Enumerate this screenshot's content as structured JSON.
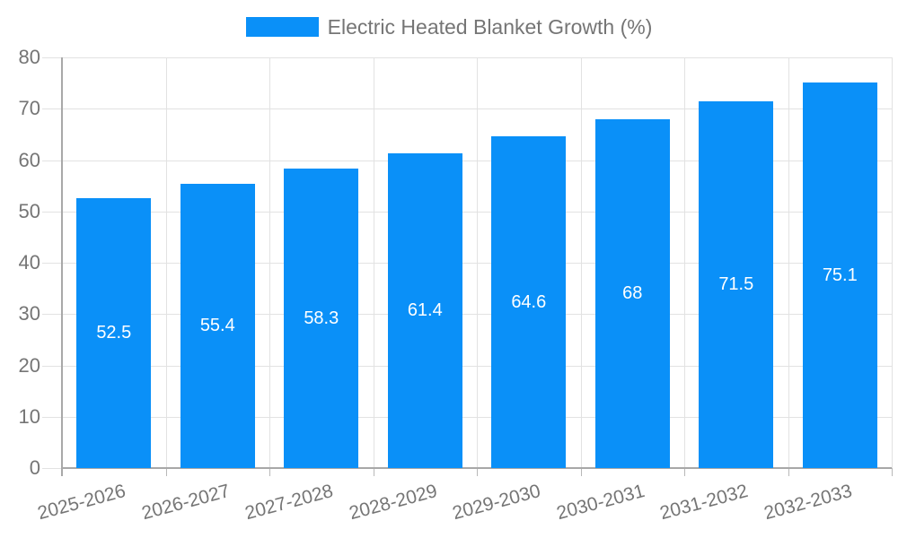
{
  "chart_data": {
    "type": "bar",
    "title": "Electric Heated Blanket Growth (%)",
    "categories": [
      "2025-2026",
      "2026-2027",
      "2027-2028",
      "2028-2029",
      "2029-2030",
      "2030-2031",
      "2031-2032",
      "2032-2033"
    ],
    "values": [
      52.5,
      55.4,
      58.3,
      61.4,
      64.6,
      68,
      71.5,
      75.1
    ],
    "value_labels": [
      "52.5",
      "55.4",
      "58.3",
      "61.4",
      "64.6",
      "68",
      "71.5",
      "75.1"
    ],
    "xlabel": "",
    "ylabel": "",
    "ylim": [
      0,
      80
    ],
    "yticks": [
      0,
      10,
      20,
      30,
      40,
      50,
      60,
      70,
      80
    ],
    "grid": true,
    "legend_position": "top",
    "colors": {
      "bar": "#0a90f8",
      "value_label": "#ffffff",
      "axis": "#a8a8a8",
      "grid": "#e2e2e2",
      "x_tick": "#b8b8b8",
      "tick_label": "#757575",
      "legend_text": "#757575",
      "background": "#ffffff"
    }
  }
}
